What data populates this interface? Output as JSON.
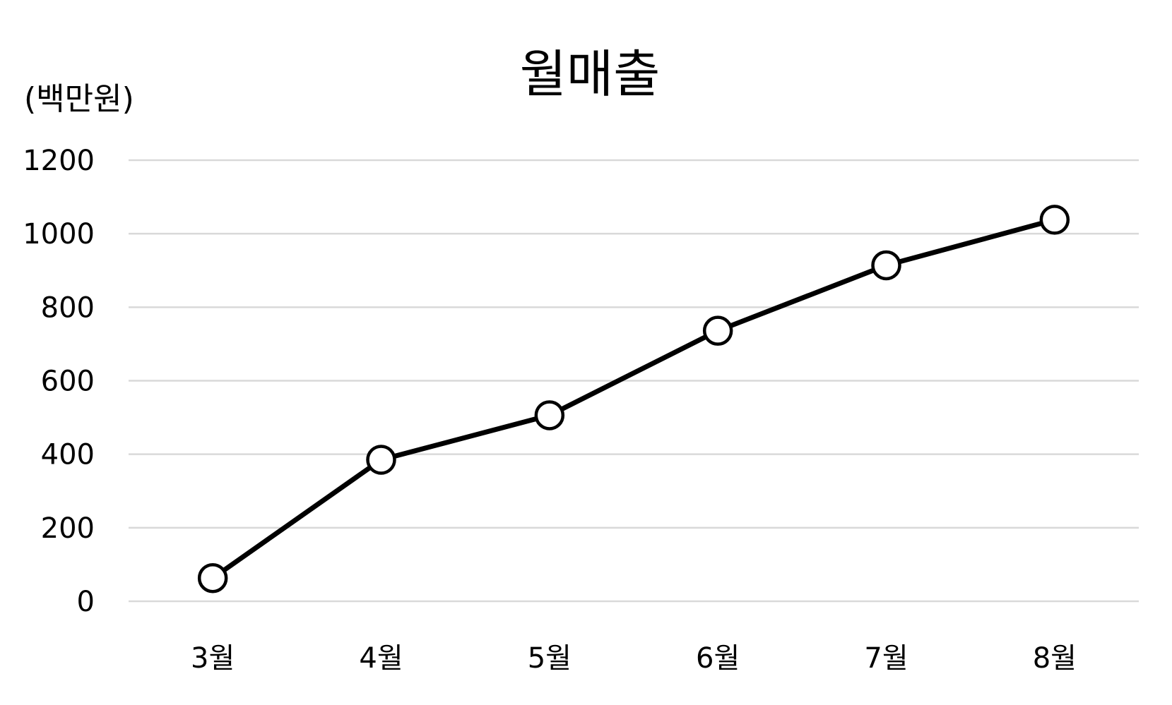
{
  "chart_data": {
    "type": "line",
    "title": "월매출",
    "ylabel": "(백만원)",
    "xlabel": "",
    "categories": [
      "3월",
      "4월",
      "5월",
      "6월",
      "7월",
      "8월"
    ],
    "series": [
      {
        "values": [
          63,
          385,
          506,
          736,
          914,
          1038
        ]
      }
    ],
    "ylim": [
      0,
      1200
    ],
    "yticks": [
      "0",
      "200",
      "400",
      "600",
      "800",
      "1000",
      "1200"
    ],
    "grid": true,
    "legend": "none",
    "colors": {
      "line": "#000000",
      "marker_fill": "#ffffff",
      "grid": "#d9d9d9",
      "text": "#000000"
    }
  }
}
